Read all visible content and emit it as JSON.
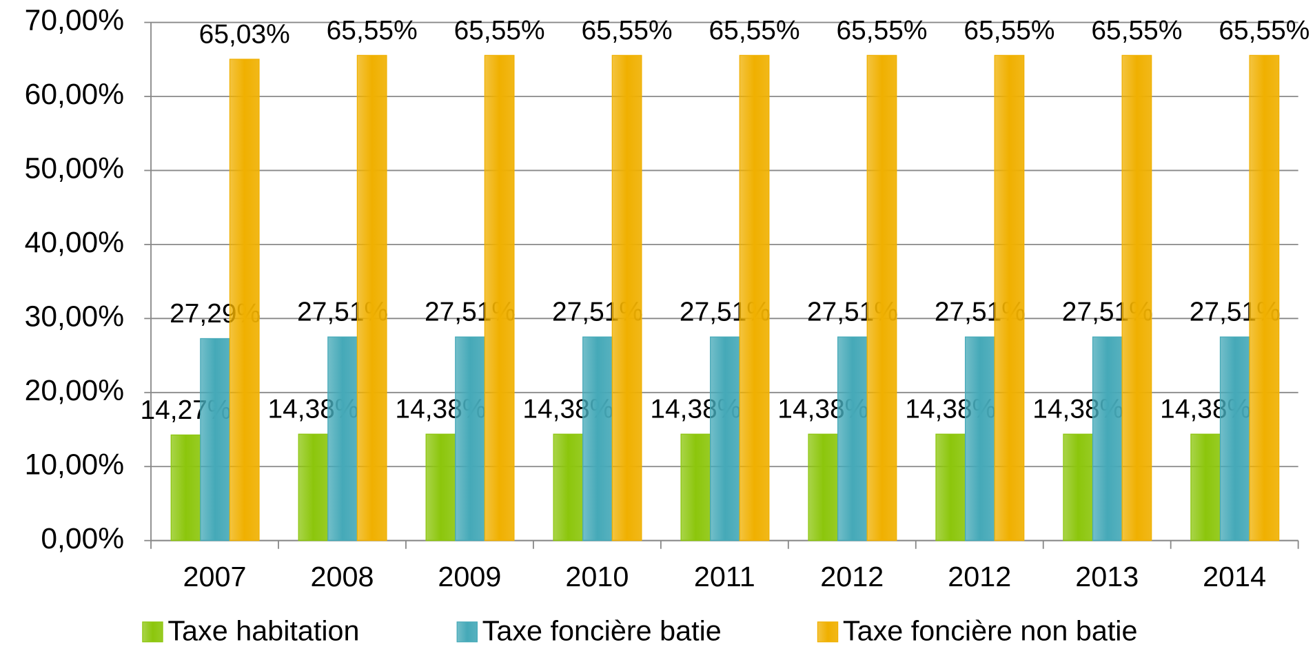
{
  "chart_data": {
    "type": "bar",
    "categories": [
      "2007",
      "2008",
      "2009",
      "2010",
      "2011",
      "2012",
      "2012",
      "2013",
      "2014"
    ],
    "series": [
      {
        "name": "Taxe habitation",
        "color": "#8cc60c",
        "values": [
          14.27,
          14.38,
          14.38,
          14.38,
          14.38,
          14.38,
          14.38,
          14.38,
          14.38
        ],
        "value_labels": [
          "14,27%",
          "14,38%",
          "14,38%",
          "14,38%",
          "14,38%",
          "14,38%",
          "14,38%",
          "14,38%",
          "14,38%"
        ]
      },
      {
        "name": "Taxe foncière batie",
        "color": "#45a9b8",
        "values": [
          27.29,
          27.51,
          27.51,
          27.51,
          27.51,
          27.51,
          27.51,
          27.51,
          27.51
        ],
        "value_labels": [
          "27,29%",
          "27,51%",
          "27,51%",
          "27,51%",
          "27,51%",
          "27,51%",
          "27,51%",
          "27,51%",
          "27,51%"
        ]
      },
      {
        "name": "Taxe foncière non batie",
        "color": "#f0b000",
        "values": [
          65.03,
          65.55,
          65.55,
          65.55,
          65.55,
          65.55,
          65.55,
          65.55,
          65.55
        ],
        "value_labels": [
          "65,03%",
          "65,55%",
          "65,55%",
          "65,55%",
          "65,55%",
          "65,55%",
          "65,55%",
          "65,55%",
          "65,55%"
        ]
      }
    ],
    "ylim": [
      0,
      70
    ],
    "yticks": [
      {
        "value": 0,
        "label": "0,00%"
      },
      {
        "value": 10,
        "label": "10,00%"
      },
      {
        "value": 20,
        "label": "20,00%"
      },
      {
        "value": 30,
        "label": "30,00%"
      },
      {
        "value": 40,
        "label": "40,00%"
      },
      {
        "value": 50,
        "label": "50,00%"
      },
      {
        "value": 60,
        "label": "60,00%"
      },
      {
        "value": 70,
        "label": "70,00%"
      }
    ],
    "grid": true,
    "legend": "bottom"
  }
}
